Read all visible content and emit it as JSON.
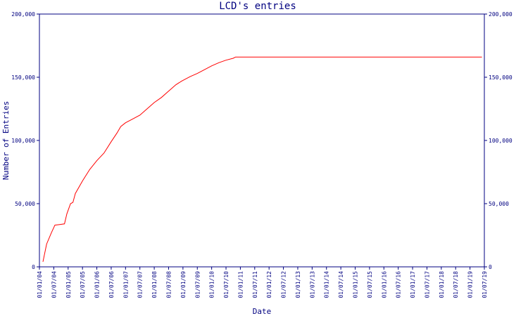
{
  "chart_data": {
    "type": "line",
    "title": "LCD's entries",
    "xlabel": "Date",
    "ylabel": "Number of Entries",
    "ylim": [
      0,
      200000
    ],
    "y_ticks": [
      0,
      50000,
      100000,
      150000,
      200000
    ],
    "y_tick_labels": [
      "0",
      "50,000",
      "100,000",
      "150,000",
      "200,000"
    ],
    "x_tick_labels": [
      "01/01/04",
      "01/07/04",
      "01/01/05",
      "01/07/05",
      "01/01/06",
      "01/07/06",
      "01/01/07",
      "01/07/07",
      "01/01/08",
      "01/07/08",
      "01/01/09",
      "01/07/09",
      "01/01/10",
      "01/07/10",
      "01/01/11",
      "01/07/11",
      "01/01/12",
      "01/07/12",
      "01/01/13",
      "01/07/13",
      "01/01/14",
      "01/07/14",
      "01/01/15",
      "01/07/15",
      "01/01/16",
      "01/07/16",
      "01/01/17",
      "01/07/17",
      "01/01/18",
      "01/07/18",
      "01/01/19",
      "01/07/19"
    ],
    "colors": {
      "axis": "#000080",
      "series": "#ff0000",
      "text": "#000080"
    },
    "grid": false,
    "legend": "none",
    "series": [
      {
        "points": [
          [
            "2004-02-15",
            4000
          ],
          [
            "2004-04-01",
            18000
          ],
          [
            "2004-06-01",
            27000
          ],
          [
            "2004-07-15",
            33000
          ],
          [
            "2004-09-15",
            33500
          ],
          [
            "2004-11-15",
            34000
          ],
          [
            "2004-12-15",
            42000
          ],
          [
            "2005-02-01",
            50000
          ],
          [
            "2005-03-01",
            51000
          ],
          [
            "2005-04-01",
            58000
          ],
          [
            "2005-07-01",
            68000
          ],
          [
            "2005-10-01",
            77000
          ],
          [
            "2006-01-01",
            84000
          ],
          [
            "2006-04-01",
            90000
          ],
          [
            "2006-07-01",
            99000
          ],
          [
            "2006-09-15",
            106000
          ],
          [
            "2006-11-01",
            111000
          ],
          [
            "2007-01-01",
            114000
          ],
          [
            "2007-04-01",
            117000
          ],
          [
            "2007-07-01",
            120000
          ],
          [
            "2007-10-01",
            125000
          ],
          [
            "2008-01-01",
            130000
          ],
          [
            "2008-04-01",
            134000
          ],
          [
            "2008-07-01",
            139000
          ],
          [
            "2008-10-01",
            144000
          ],
          [
            "2008-12-15",
            147000
          ],
          [
            "2009-04-01",
            150500
          ],
          [
            "2009-07-01",
            153000
          ],
          [
            "2009-10-01",
            156000
          ],
          [
            "2010-01-01",
            159000
          ],
          [
            "2010-04-01",
            161500
          ],
          [
            "2010-07-01",
            163500
          ],
          [
            "2010-10-01",
            165000
          ],
          [
            "2010-11-01",
            166000
          ],
          [
            "2019-06-01",
            166000
          ]
        ]
      }
    ]
  }
}
